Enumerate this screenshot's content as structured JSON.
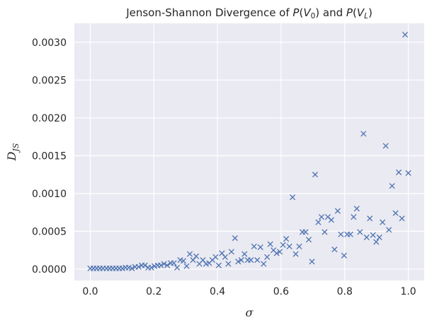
{
  "chart_data": {
    "type": "scatter",
    "title": {
      "prefix": "Jenson-Shannon Divergence of ",
      "p1": "P",
      "v1": "V",
      "s1": "0",
      "mid": " and ",
      "p2": "P",
      "v2": "V",
      "s2": "L"
    },
    "xlabel": "σ",
    "ylabel": {
      "base": "D",
      "sub": "JS"
    },
    "xlim": [
      -0.05,
      1.05
    ],
    "ylim": [
      -0.00015,
      0.00325
    ],
    "x_ticks": [
      0.0,
      0.2,
      0.4,
      0.6,
      0.8,
      1.0
    ],
    "x_tick_labels": [
      "0.0",
      "0.2",
      "0.4",
      "0.6",
      "0.8",
      "1.0"
    ],
    "y_ticks": [
      0.0,
      0.0005,
      0.001,
      0.0015,
      0.002,
      0.0025,
      0.003
    ],
    "y_tick_labels": [
      "0.0000",
      "0.0005",
      "0.0010",
      "0.0015",
      "0.0020",
      "0.0025",
      "0.0030"
    ],
    "grid": true,
    "marker": "x",
    "color": "#4c72b0",
    "background": "#eaeaf2",
    "points": [
      [
        0.0,
        1e-05
      ],
      [
        0.01,
        1e-05
      ],
      [
        0.02,
        1e-05
      ],
      [
        0.03,
        1e-05
      ],
      [
        0.04,
        1e-05
      ],
      [
        0.051,
        1e-05
      ],
      [
        0.061,
        1e-05
      ],
      [
        0.071,
        1e-05
      ],
      [
        0.081,
        1e-05
      ],
      [
        0.091,
        1e-05
      ],
      [
        0.101,
        1e-05
      ],
      [
        0.111,
        2e-05
      ],
      [
        0.121,
        2e-05
      ],
      [
        0.131,
        1e-05
      ],
      [
        0.141,
        3e-05
      ],
      [
        0.152,
        3e-05
      ],
      [
        0.162,
        5e-05
      ],
      [
        0.172,
        5e-05
      ],
      [
        0.182,
        2e-05
      ],
      [
        0.192,
        2e-05
      ],
      [
        0.202,
        4e-05
      ],
      [
        0.212,
        5e-05
      ],
      [
        0.222,
        5e-05
      ],
      [
        0.232,
        7e-05
      ],
      [
        0.242,
        5e-05
      ],
      [
        0.253,
        8e-05
      ],
      [
        0.263,
        8e-05
      ],
      [
        0.273,
        2e-05
      ],
      [
        0.283,
        0.00012
      ],
      [
        0.293,
        0.00011
      ],
      [
        0.303,
        4e-05
      ],
      [
        0.313,
        0.0002
      ],
      [
        0.323,
        0.00012
      ],
      [
        0.333,
        0.00017
      ],
      [
        0.343,
        7e-05
      ],
      [
        0.354,
        0.00012
      ],
      [
        0.364,
        7e-05
      ],
      [
        0.374,
        8e-05
      ],
      [
        0.384,
        0.00012
      ],
      [
        0.394,
        0.00016
      ],
      [
        0.404,
        5e-05
      ],
      [
        0.414,
        0.00021
      ],
      [
        0.424,
        0.00016
      ],
      [
        0.434,
        7e-05
      ],
      [
        0.444,
        0.00023
      ],
      [
        0.455,
        0.00041
      ],
      [
        0.465,
        0.0001
      ],
      [
        0.475,
        0.00012
      ],
      [
        0.485,
        0.0002
      ],
      [
        0.495,
        0.00012
      ],
      [
        0.505,
        0.00012
      ],
      [
        0.515,
        0.0003
      ],
      [
        0.525,
        0.00012
      ],
      [
        0.535,
        0.00029
      ],
      [
        0.545,
        7e-05
      ],
      [
        0.556,
        0.00016
      ],
      [
        0.566,
        0.00033
      ],
      [
        0.576,
        0.00025
      ],
      [
        0.586,
        0.00021
      ],
      [
        0.596,
        0.00023
      ],
      [
        0.606,
        0.00032
      ],
      [
        0.616,
        0.0004
      ],
      [
        0.626,
        0.0003
      ],
      [
        0.636,
        0.00095
      ],
      [
        0.646,
        0.0002
      ],
      [
        0.657,
        0.0003
      ],
      [
        0.667,
        0.00049
      ],
      [
        0.677,
        0.00049
      ],
      [
        0.687,
        0.00039
      ],
      [
        0.697,
        0.0001
      ],
      [
        0.707,
        0.00125
      ],
      [
        0.717,
        0.00062
      ],
      [
        0.727,
        0.00069
      ],
      [
        0.737,
        0.00049
      ],
      [
        0.747,
        0.00069
      ],
      [
        0.758,
        0.00065
      ],
      [
        0.768,
        0.00026
      ],
      [
        0.778,
        0.00077
      ],
      [
        0.788,
        0.00046
      ],
      [
        0.798,
        0.00018
      ],
      [
        0.808,
        0.00046
      ],
      [
        0.818,
        0.00046
      ],
      [
        0.828,
        0.00069
      ],
      [
        0.838,
        0.0008
      ],
      [
        0.848,
        0.00049
      ],
      [
        0.859,
        0.00179
      ],
      [
        0.869,
        0.00042
      ],
      [
        0.879,
        0.00067
      ],
      [
        0.889,
        0.00045
      ],
      [
        0.899,
        0.00036
      ],
      [
        0.909,
        0.00042
      ],
      [
        0.919,
        0.00062
      ],
      [
        0.929,
        0.00163
      ],
      [
        0.939,
        0.00052
      ],
      [
        0.949,
        0.0011
      ],
      [
        0.96,
        0.00074
      ],
      [
        0.97,
        0.00128
      ],
      [
        0.98,
        0.00067
      ],
      [
        0.99,
        0.0031
      ],
      [
        1.0,
        0.00127
      ]
    ]
  }
}
